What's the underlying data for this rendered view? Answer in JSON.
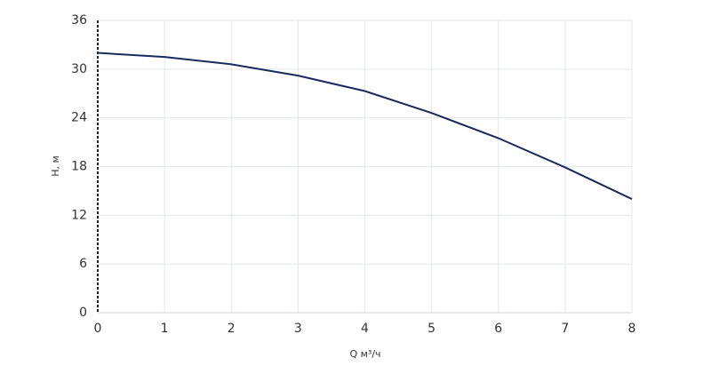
{
  "chart_data": {
    "type": "line",
    "x": [
      0,
      1,
      2,
      3,
      4,
      5,
      6,
      7,
      8
    ],
    "values": [
      32,
      31.5,
      30.6,
      29.2,
      27.3,
      24.6,
      21.5,
      17.9,
      14.0
    ],
    "color": "#1b2a5c",
    "xlabel": "Q м³/ч",
    "ylabel": "H, м",
    "xlim": [
      0,
      8
    ],
    "xticks": [
      0,
      1,
      2,
      3,
      4,
      5,
      6,
      7,
      8
    ],
    "ylim": [
      0,
      36
    ],
    "yticks": [
      0,
      6,
      12,
      18,
      24,
      30,
      36
    ],
    "grid": true
  }
}
